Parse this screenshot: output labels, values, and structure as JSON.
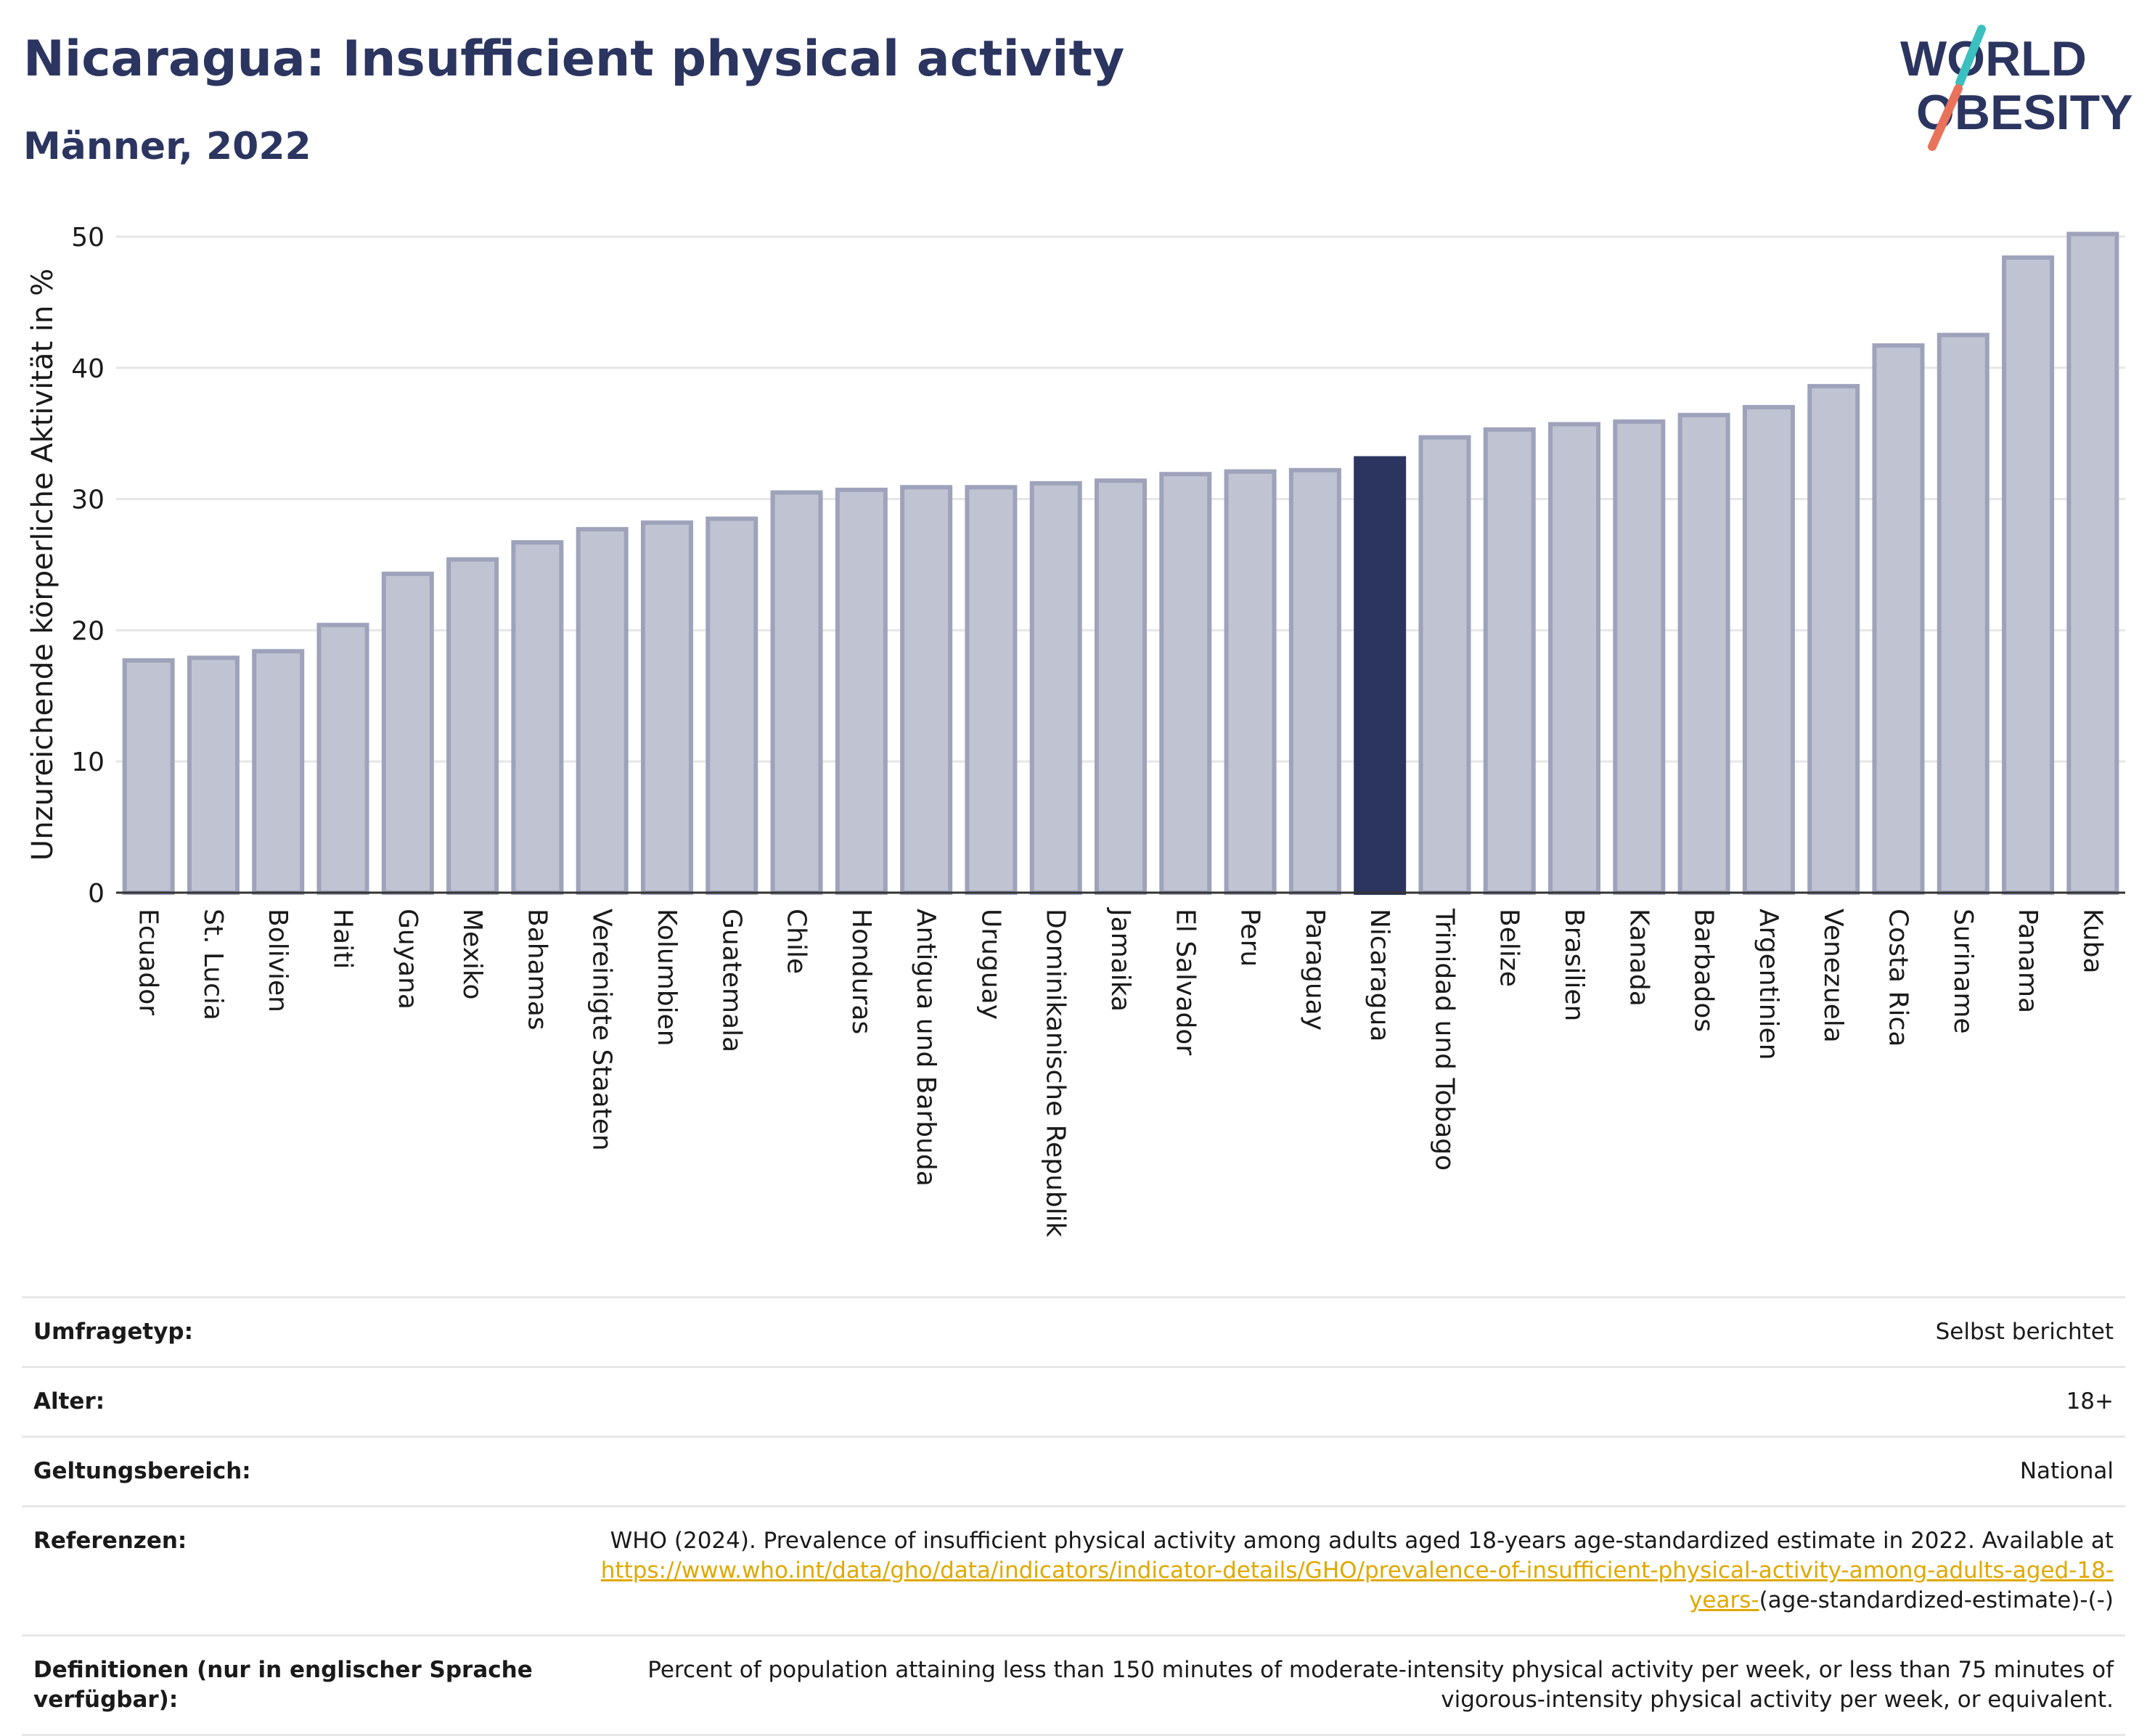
{
  "header": {
    "title": "Nicaragua: Insufficient physical activity",
    "subtitle": "Männer, 2022",
    "logo_line1": "WORLD",
    "logo_line2": "OBESITY"
  },
  "colors": {
    "bar": "#c0c3d1",
    "bar_stroke": "#9ea3bb",
    "highlight": "#2b3560",
    "text_dark": "#2b3560",
    "link": "#e0a800",
    "logo_teal": "#3bbfbf",
    "logo_coral": "#e8735a"
  },
  "chart_data": {
    "type": "bar",
    "title": "Nicaragua: Insufficient physical activity",
    "subtitle": "Männer, 2022",
    "ylabel": "Unzureichende körperliche Aktivität in %",
    "xlabel": "",
    "ylim": [
      0,
      50
    ],
    "yticks": [
      0,
      10,
      20,
      30,
      40,
      50
    ],
    "grid": true,
    "highlight": "Nicaragua",
    "categories": [
      "Ecuador",
      "St. Lucia",
      "Bolivien",
      "Haiti",
      "Guyana",
      "Mexiko",
      "Bahamas",
      "Vereinigte Staaten",
      "Kolumbien",
      "Guatemala",
      "Chile",
      "Honduras",
      "Antigua und Barbuda",
      "Uruguay",
      "Dominikanische Republik",
      "Jamaika",
      "El Salvador",
      "Peru",
      "Paraguay",
      "Nicaragua",
      "Trinidad und Tobago",
      "Belize",
      "Brasilien",
      "Kanada",
      "Barbados",
      "Argentinien",
      "Venezuela",
      "Costa Rica",
      "Suriname",
      "Panama",
      "Kuba"
    ],
    "values": [
      17.7,
      17.9,
      18.4,
      20.4,
      24.3,
      25.4,
      26.7,
      27.7,
      28.2,
      28.5,
      30.5,
      30.7,
      30.9,
      30.9,
      31.2,
      31.4,
      31.9,
      32.1,
      32.2,
      33.1,
      34.7,
      35.3,
      35.7,
      35.9,
      36.4,
      37.0,
      38.6,
      41.7,
      42.5,
      48.4,
      50.2
    ]
  },
  "meta": {
    "survey_type_label": "Umfragetyp:",
    "survey_type_value": "Selbst berichtet",
    "age_label": "Alter:",
    "age_value": "18+",
    "scope_label": "Geltungsbereich:",
    "scope_value": "National",
    "references_label": "Referenzen:",
    "references_text": "WHO (2024). Prevalence of insufficient physical activity among adults aged 18-years age-standardized estimate in 2022. Available at",
    "references_link": "https://www.who.int/data/gho/data/indicators/indicator-details/GHO/prevalence-of-insufficient-physical-activity-among-adults-aged-18-years-",
    "references_suffix": "(age-standardized-estimate)-(-)",
    "definitions_label": "Definitionen (nur in englischer Sprache verfügbar):",
    "definitions_value": "Percent of population attaining less than 150 minutes of moderate-intensity physical activity per week, or less than 75 minutes of vigorous-intensity physical activity per week, or equivalent."
  }
}
